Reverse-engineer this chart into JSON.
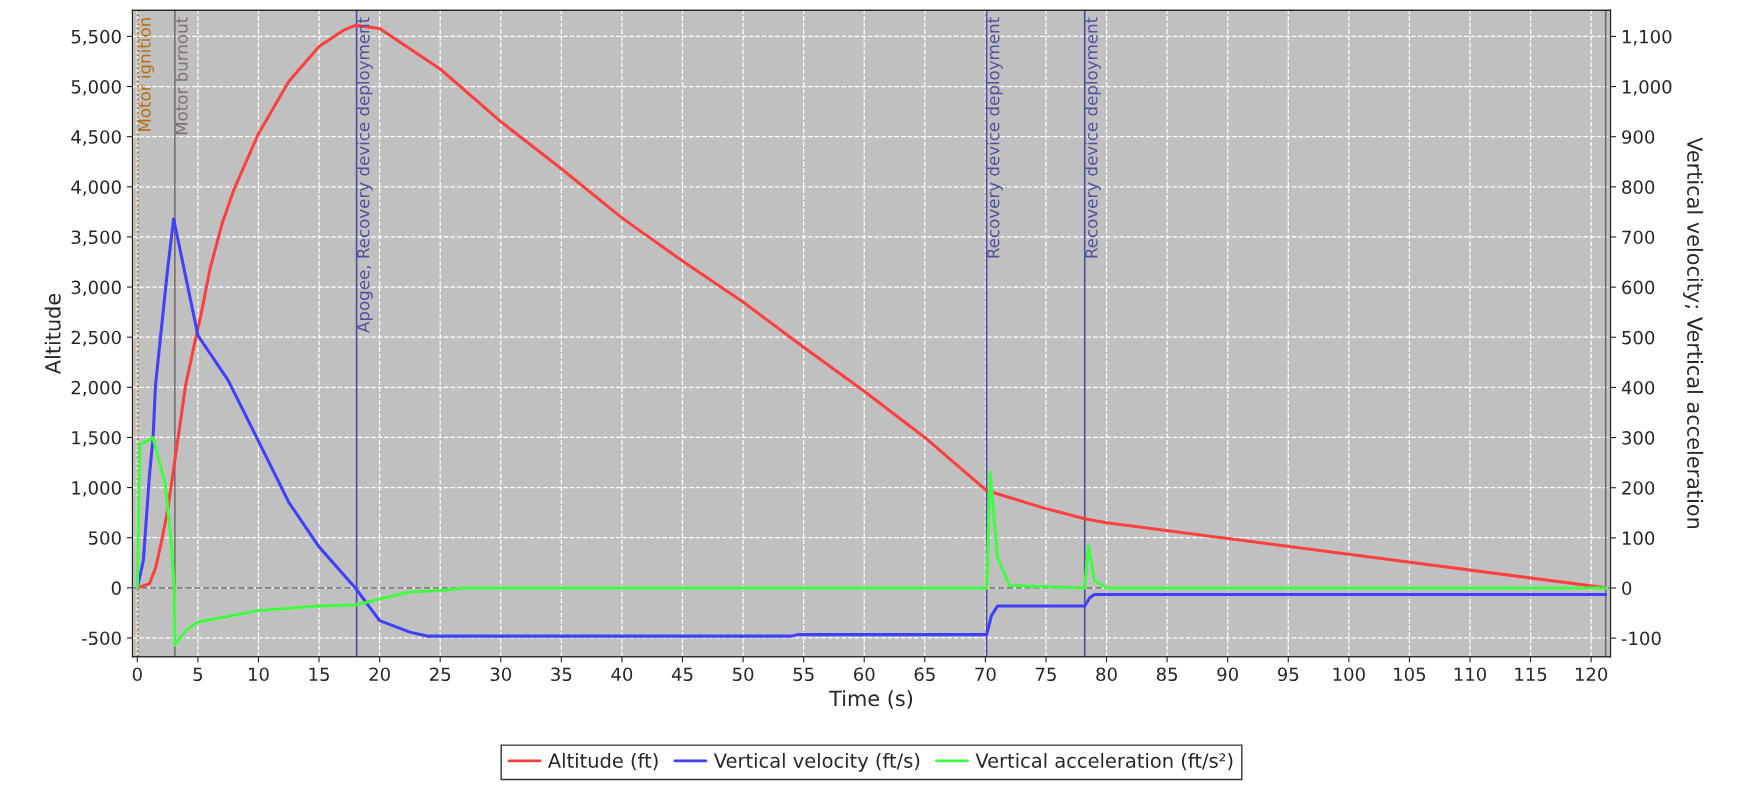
{
  "chart_data": {
    "type": "line",
    "xlabel": "Time (s)",
    "ylabel": "Altitude",
    "y2label": "Vertical velocity; Vertical acceleration",
    "xlim": [
      -0.4,
      121.6
    ],
    "ylim": [
      -687,
      5760
    ],
    "y2lim": [
      -137,
      1152
    ],
    "xticks": [
      0,
      5,
      10,
      15,
      20,
      25,
      30,
      35,
      40,
      45,
      50,
      55,
      60,
      65,
      70,
      75,
      80,
      85,
      90,
      95,
      100,
      105,
      110,
      115,
      120
    ],
    "yticks": [
      -500,
      0,
      500,
      {
        "value": 1000,
        "label": "1,000"
      },
      {
        "value": 1500,
        "label": "1,500"
      },
      {
        "value": 2000,
        "label": "2,000"
      },
      {
        "value": 2500,
        "label": "2,500"
      },
      {
        "value": 3000,
        "label": "3,000"
      },
      {
        "value": 3500,
        "label": "3,500"
      },
      {
        "value": 4000,
        "label": "4,000"
      },
      {
        "value": 4500,
        "label": "4,500"
      },
      {
        "value": 5000,
        "label": "5,000"
      },
      {
        "value": 5500,
        "label": "5,500"
      }
    ],
    "y2ticks": [
      -100,
      0,
      100,
      200,
      300,
      400,
      500,
      600,
      700,
      800,
      900,
      {
        "value": 1000,
        "label": "1,000"
      },
      {
        "value": 1100,
        "label": "1,100"
      }
    ],
    "grid": true,
    "legend": "bottom",
    "marker": "none",
    "line_style": "solid",
    "series": [
      {
        "name": "Altitude (ft)",
        "color": "#ff4040",
        "x": [
          0,
          1,
          1.5,
          2,
          2.5,
          3,
          3.5,
          4,
          5,
          5.25,
          6,
          7,
          8,
          10,
          12.5,
          15,
          17,
          18,
          20,
          25,
          30,
          35,
          40,
          45,
          50,
          55,
          60,
          65,
          70.1,
          75,
          78.2,
          80,
          100,
          121.2
        ],
        "values": [
          0,
          42,
          195,
          464,
          770,
          1190,
          1610,
          2030,
          2590,
          2720,
          3180,
          3635,
          3980,
          4530,
          5050,
          5400,
          5560,
          5610,
          5580,
          5175,
          4650,
          4180,
          3690,
          3260,
          2850,
          2400,
          1960,
          1500,
          970,
          790,
          690,
          650,
          335,
          0
        ]
      },
      {
        "name": "Vertical velocity (ft/s)",
        "color": "#4040ff",
        "axis": "y2",
        "x": [
          0,
          0.5,
          1,
          1.3,
          1.5,
          2,
          2.5,
          3,
          4,
          5,
          7.5,
          10,
          12.5,
          15,
          18,
          20,
          22.5,
          24,
          54,
          54.5,
          70.1,
          70.5,
          71,
          78.2,
          78.6,
          79,
          121.2
        ],
        "values": [
          0,
          55,
          224,
          300,
          404,
          520,
          636,
          736,
          620,
          504,
          414,
          293,
          171,
          82,
          0,
          -65,
          -88,
          -96,
          -96,
          -93,
          -93,
          -55,
          -36,
          -36,
          -20,
          -13,
          -13
        ]
      },
      {
        "name": "Vertical acceleration (ft/s²)",
        "color": "#40ff40",
        "axis": "y2",
        "x": [
          0,
          0.2,
          1.3,
          2.3,
          2.8,
          3.05,
          3.1,
          4,
          5,
          10,
          15,
          18,
          20,
          22.5,
          25,
          27,
          70.1,
          70.4,
          71,
          72,
          78.2,
          78.5,
          79,
          80,
          121.2
        ],
        "values": [
          0,
          286,
          300,
          208,
          93,
          0,
          -114,
          -85,
          -68,
          -45,
          -36,
          -34,
          -22,
          -8,
          -5,
          0,
          0,
          230,
          60,
          5,
          0,
          84,
          15,
          0,
          0
        ]
      }
    ],
    "ref_lines": [
      {
        "axis": "x",
        "value": 0.05,
        "label": "Motor ignition",
        "color": "#b86e10",
        "line_style": "dotted"
      },
      {
        "axis": "x",
        "value": 3.1,
        "label": "Motor burnout",
        "color": "#807070",
        "line_style": "solid"
      },
      {
        "axis": "x",
        "value": 18.1,
        "label": "Apogee, Recovery device deployment",
        "color": "#5050a0",
        "line_style": "solid"
      },
      {
        "axis": "x",
        "value": 70.1,
        "label": "Recovery device deployment",
        "color": "#5050a0",
        "line_style": "solid"
      },
      {
        "axis": "x",
        "value": 78.2,
        "label": "Recovery device deployment",
        "color": "#5050a0",
        "line_style": "solid"
      },
      {
        "axis": "x",
        "value": 121.2,
        "color": "#707070",
        "line_style": "solid"
      },
      {
        "axis": "y",
        "value": 0,
        "color": "#808080",
        "line_style": "dashed"
      }
    ]
  }
}
